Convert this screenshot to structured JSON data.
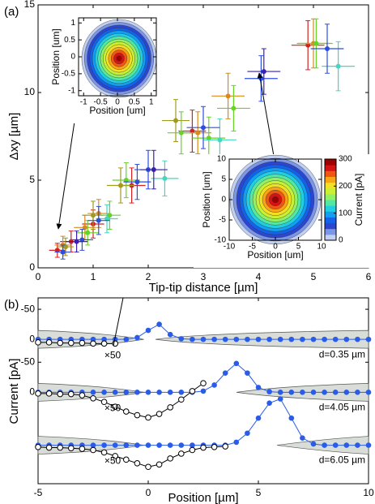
{
  "chart_data": [
    {
      "type": "scatter",
      "panel_label": "(a)",
      "xlabel": "Tip-tip distance [µm]",
      "ylabel": "Δxy [µm]",
      "xlim": [
        0,
        6
      ],
      "ylim": [
        0,
        15
      ],
      "xticks": [
        0,
        1,
        2,
        3,
        4,
        5,
        6
      ],
      "yticks": [
        0,
        5,
        10,
        15
      ],
      "series": [
        {
          "color": "#d62020",
          "x": [
            0.35,
            0.6,
            1.0,
            1.7,
            2.8,
            4.9
          ],
          "values": [
            1.0,
            1.5,
            2.5,
            4.7,
            7.8,
            12.7
          ],
          "xerr": [
            0.15,
            0.2,
            0.2,
            0.25,
            0.25,
            0.3
          ],
          "yerr": [
            0.4,
            0.6,
            0.8,
            1.0,
            1.2,
            1.4
          ]
        },
        {
          "color": "#d98a1a",
          "x": [
            0.45,
            0.85,
            1.1,
            2.9,
            3.45,
            5.0
          ],
          "values": [
            1.3,
            2.3,
            3.1,
            7.7,
            9.8,
            12.8
          ],
          "xerr": [
            0.15,
            0.2,
            0.2,
            0.25,
            0.3,
            0.3
          ],
          "yerr": [
            0.5,
            0.7,
            0.8,
            1.2,
            1.3,
            1.4
          ]
        },
        {
          "color": "#a09a22",
          "x": [
            0.5,
            1.0,
            1.5,
            2.5
          ],
          "values": [
            1.2,
            3.0,
            4.7,
            8.4
          ],
          "xerr": [
            0.15,
            0.2,
            0.25,
            0.25
          ],
          "yerr": [
            0.5,
            0.8,
            1.0,
            1.2
          ]
        },
        {
          "color": "#66d424",
          "x": [
            0.9,
            1.3,
            1.6,
            2.6,
            3.1,
            3.55,
            5.05
          ],
          "values": [
            2.0,
            3.0,
            5.0,
            7.7,
            7.4,
            9.1,
            12.8
          ],
          "xerr": [
            0.2,
            0.2,
            0.25,
            0.25,
            0.3,
            0.3,
            0.3
          ],
          "yerr": [
            0.7,
            0.8,
            1.0,
            1.2,
            1.2,
            1.3,
            1.4
          ]
        },
        {
          "color": "#3fd8c0",
          "x": [
            1.25,
            2.3,
            3.3,
            5.45
          ],
          "values": [
            2.8,
            5.1,
            7.3,
            11.5
          ],
          "xerr": [
            0.2,
            0.25,
            0.3,
            0.3
          ],
          "yerr": [
            0.8,
            1.0,
            1.2,
            1.4
          ]
        },
        {
          "color": "#2b4ee0",
          "x": [
            0.45,
            0.8,
            1.1,
            1.8,
            2.0,
            3.0,
            4.05,
            5.25
          ],
          "values": [
            0.9,
            1.6,
            2.7,
            4.9,
            5.6,
            8.0,
            10.8,
            12.5
          ],
          "xerr": [
            0.15,
            0.2,
            0.2,
            0.25,
            0.25,
            0.3,
            0.3,
            0.3
          ],
          "yerr": [
            0.4,
            0.6,
            0.8,
            1.0,
            1.1,
            1.2,
            1.3,
            1.4
          ]
        },
        {
          "color": "#3a1fb0",
          "x": [
            0.7,
            2.1,
            4.1
          ],
          "values": [
            1.5,
            5.6,
            11.2
          ],
          "xerr": [
            0.2,
            0.25,
            0.3
          ],
          "yerr": [
            0.6,
            1.1,
            1.3
          ]
        }
      ]
    },
    {
      "type": "contour",
      "xlabel": "Position [um]",
      "ylabel": "Position [um]",
      "xlim": [
        -1.15,
        1.15
      ],
      "ylim": [
        -1.15,
        1.15
      ],
      "xticks": [
        -1,
        -0.5,
        0,
        0.5,
        1
      ],
      "yticks": [
        -1,
        -0.5,
        0,
        0.5,
        1
      ]
    },
    {
      "type": "contour",
      "xlabel": "Position [um]",
      "ylabel": "Position [um]",
      "xlim": [
        -10,
        10
      ],
      "ylim": [
        -10,
        10
      ],
      "xticks": [
        -10,
        -5,
        0,
        5,
        10
      ],
      "yticks": [
        -10,
        -5,
        0,
        5,
        10
      ],
      "colorbar": {
        "label": "Current [pA]",
        "lim": [
          0,
          300
        ],
        "ticks": [
          0,
          100,
          200,
          300
        ]
      }
    },
    {
      "type": "line",
      "panel_label": "(b)",
      "y_inverted": true,
      "annotations": [
        "×50",
        "d=0.35 µm"
      ],
      "xlim": [
        -5,
        10
      ],
      "ylim": [
        -69,
        240
      ],
      "yticks": [
        -50,
        0
      ],
      "x": [
        -5,
        -4.5,
        -4,
        -3.5,
        -3,
        -2.5,
        -2,
        -1.5,
        -1,
        -0.5,
        0,
        0.5,
        1,
        1.5,
        2,
        2.5,
        3,
        3.5,
        4,
        4.5,
        5,
        5.5,
        6,
        6.5,
        7,
        7.5,
        8,
        8.5,
        9,
        9.5,
        10
      ],
      "series": [
        {
          "color": "#2a5ce8",
          "values": [
            0,
            0,
            0,
            0,
            0,
            0,
            0,
            0,
            0,
            -3,
            -15,
            -25,
            -8,
            -1,
            0,
            0,
            0,
            0,
            0,
            0,
            0,
            0,
            0,
            0,
            0,
            0,
            0,
            0,
            0,
            0,
            0
          ]
        },
        {
          "color": "#000000",
          "values": [
            5,
            5,
            6,
            6,
            6,
            7,
            7,
            7,
            null,
            null,
            null,
            null,
            null,
            null,
            null,
            null,
            null,
            null,
            null,
            null,
            null,
            null,
            null,
            null,
            null,
            null,
            null,
            null,
            null,
            null,
            null
          ]
        }
      ]
    },
    {
      "type": "line",
      "y_inverted": true,
      "ylabel": "Current [pA]",
      "annotations": [
        "×50",
        "d=4.05 µm"
      ],
      "xlim": [
        -5,
        10
      ],
      "ylim": [
        -157,
        152
      ],
      "yticks": [
        -50,
        0
      ],
      "x": [
        -5,
        -4.5,
        -4,
        -3.5,
        -3,
        -2.5,
        -2,
        -1.5,
        -1,
        -0.5,
        0,
        0.5,
        1,
        1.5,
        2,
        2.5,
        3,
        3.5,
        4,
        4.5,
        5,
        5.5,
        6,
        6.5,
        7,
        7.5,
        8,
        8.5,
        9,
        9.5,
        10
      ],
      "series": [
        {
          "color": "#2a5ce8",
          "values": [
            0,
            0,
            0,
            0,
            0,
            0,
            0,
            0,
            0,
            0,
            0,
            0,
            0,
            0,
            0,
            -2,
            -12,
            -32,
            -48,
            -32,
            -8,
            -1,
            0,
            0,
            0,
            0,
            0,
            0,
            0,
            0,
            0
          ]
        },
        {
          "color": "#000000",
          "values": [
            2,
            2,
            3,
            3,
            5,
            10,
            16,
            24,
            32,
            38,
            42,
            36,
            25,
            12,
            -2,
            -15,
            null,
            null,
            null,
            null,
            null,
            null,
            null,
            null,
            null,
            null,
            null,
            null,
            null,
            null,
            null
          ]
        }
      ]
    },
    {
      "type": "line",
      "y_inverted": true,
      "xlabel": "Position [µm]",
      "annotations": [
        "×50",
        "d=6.05 µm"
      ],
      "xlim": [
        -5,
        10
      ],
      "ylim": [
        -245,
        64
      ],
      "xticks": [
        -5,
        0,
        5,
        10
      ],
      "x": [
        -5,
        -4.5,
        -4,
        -3.5,
        -3,
        -2.5,
        -2,
        -1.5,
        -1,
        -0.5,
        0,
        0.5,
        1,
        1.5,
        2,
        2.5,
        3,
        3.5,
        4,
        4.5,
        5,
        5.5,
        6,
        6.5,
        7,
        7.5,
        8,
        8.5,
        9,
        9.5,
        10
      ],
      "series": [
        {
          "color": "#2a5ce8",
          "values": [
            0,
            0,
            0,
            0,
            0,
            0,
            0,
            0,
            0,
            0,
            0,
            0,
            0,
            0,
            0,
            0,
            0,
            0,
            -5,
            -20,
            -45,
            -70,
            -77,
            -45,
            -12,
            -2,
            0,
            0,
            0,
            0,
            0
          ]
        },
        {
          "color": "#000000",
          "values": [
            3,
            4,
            4,
            5,
            6,
            8,
            12,
            18,
            24,
            30,
            36,
            32,
            22,
            14,
            8,
            4,
            3,
            2,
            null,
            null,
            null,
            null,
            null,
            null,
            null,
            null,
            null,
            null,
            null,
            null,
            null
          ]
        }
      ]
    }
  ]
}
